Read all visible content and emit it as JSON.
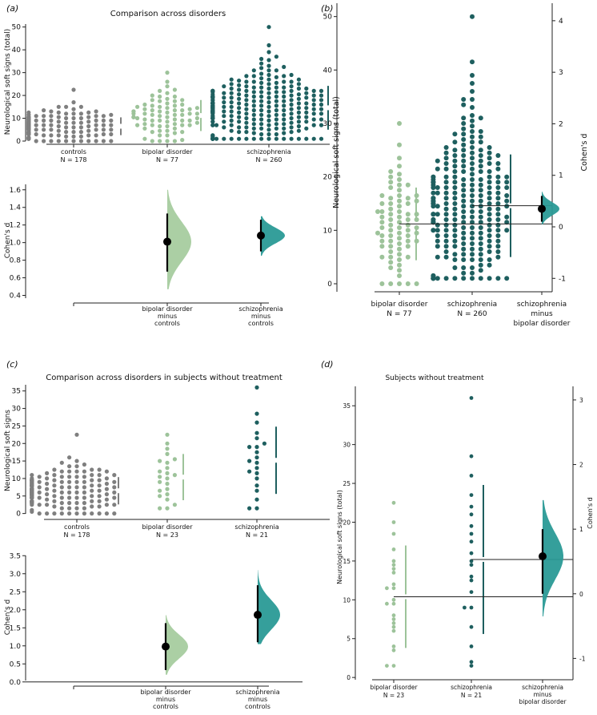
{
  "colors": {
    "controls": "#7f7f7f",
    "bipolar": "#9dc39a",
    "schizophrenia": "#1e5f5f",
    "effect_teal": "#2a9a96",
    "effect_green": "#a6cc9f",
    "black": "#000000"
  },
  "chart_data": [
    {
      "panel": "a",
      "panel_label": "(a)",
      "type": "scatter",
      "subtype": "swarm",
      "title": "Comparison across disorders",
      "ylabel": "Neurological soft signs (total)",
      "ylim": [
        0,
        52
      ],
      "yticks": [
        0,
        10,
        20,
        30,
        40,
        50
      ],
      "groups": [
        {
          "key": "controls",
          "label": "controls",
          "n_label": "N = 178",
          "n": 178,
          "mean": 6.5,
          "sd": 3.9,
          "min": 0,
          "max": 22.5,
          "color": "controls"
        },
        {
          "key": "bipolar",
          "label": "bipolar disorder",
          "n_label": "N = 77",
          "n": 77,
          "mean": 11.2,
          "sd": 6.8,
          "min": 0,
          "max": 30,
          "color": "bipolar"
        },
        {
          "key": "schizophrenia",
          "label": "schizophrenia",
          "n_label": "N = 260",
          "n": 260,
          "mean": 14.6,
          "sd": 9.6,
          "min": 1,
          "max": 50,
          "color": "schizophrenia"
        }
      ]
    },
    {
      "panel": "a2",
      "type": "violin",
      "subtype": "effect-size",
      "ylabel": "Cohen's d",
      "ylim": [
        0.35,
        1.68
      ],
      "yticks": [
        0.4,
        0.6,
        0.8,
        1.0,
        1.2,
        1.4,
        1.6
      ],
      "effects": [
        {
          "label": "bipolar disorder\nminus\ncontrols",
          "d": 1.01,
          "ci": [
            0.67,
            1.33
          ],
          "dist_range": [
            0.47,
            1.6
          ],
          "color": "effect_green"
        },
        {
          "label": "schizophrenia\nminus\ncontrols",
          "d": 1.08,
          "ci": [
            0.9,
            1.26
          ],
          "dist_range": [
            0.85,
            1.3
          ],
          "color": "effect_teal"
        }
      ]
    },
    {
      "panel": "b",
      "panel_label": "(b)",
      "type": "scatter",
      "subtype": "swarm-with-effect",
      "ylabel": "Neurological soft signs (total)",
      "ylabel_right": "Cohen's d",
      "ylim": [
        -1.5,
        52.5
      ],
      "yticks": [
        0,
        10,
        20,
        30,
        40,
        50
      ],
      "right_ylim": [
        -1.26,
        4.34
      ],
      "right_yticks": [
        -1,
        0,
        1,
        2,
        3,
        4
      ],
      "groups": [
        {
          "key": "bipolar",
          "label": "bipolar disorder",
          "n_label": "N = 77",
          "n": 77,
          "mean": 11.2,
          "sd": 6.8,
          "min": 0,
          "max": 30,
          "color": "bipolar"
        },
        {
          "key": "schizophrenia",
          "label": "schizophrenia",
          "n_label": "N = 260",
          "n": 260,
          "mean": 14.6,
          "sd": 9.6,
          "min": 1,
          "max": 50,
          "color": "schizophrenia"
        }
      ],
      "effect": {
        "label": "schizophrenia\nminus\nbipolar disorder",
        "d": 0.35,
        "ci": [
          0.1,
          0.6
        ],
        "dist_range": [
          0.05,
          0.68
        ],
        "color": "effect_teal"
      }
    },
    {
      "panel": "c",
      "panel_label": "(c)",
      "type": "scatter",
      "subtype": "swarm",
      "title": "Comparison across disorders in subjects without treatment",
      "ylabel": "Neurological soft signs",
      "ylim": [
        -1,
        37
      ],
      "yticks": [
        0,
        5,
        10,
        15,
        20,
        25,
        30,
        35
      ],
      "groups": [
        {
          "key": "controls",
          "label": "controls",
          "n_label": "N = 178",
          "n": 178,
          "mean": 6.5,
          "sd": 3.9,
          "min": 0,
          "max": 22.5,
          "color": "controls"
        },
        {
          "key": "bipolar",
          "label": "bipolar disorder",
          "n_label": "N = 23",
          "n": 23,
          "mean": 10.4,
          "sd": 6.6,
          "min": 1.5,
          "max": 22.5,
          "color": "bipolar"
        },
        {
          "key": "schizophrenia",
          "label": "schizophrenia",
          "n_label": "N = 21",
          "n": 21,
          "mean": 15.2,
          "sd": 9.6,
          "min": 1.5,
          "max": 36,
          "color": "schizophrenia"
        }
      ]
    },
    {
      "panel": "c2",
      "type": "violin",
      "subtype": "effect-size",
      "ylabel": "Cohen's d",
      "ylim": [
        -0.05,
        3.55
      ],
      "yticks": [
        0.0,
        0.5,
        1.0,
        1.5,
        2.0,
        2.5,
        3.0,
        3.5
      ],
      "effects": [
        {
          "label": "bipolar disorder\nminus\ncontrols",
          "d": 0.98,
          "ci": [
            0.33,
            1.63
          ],
          "dist_range": [
            0.2,
            1.85
          ],
          "color": "effect_green"
        },
        {
          "label": "schizophrenia\nminus\ncontrols",
          "d": 1.86,
          "ci": [
            1.1,
            2.68
          ],
          "dist_range": [
            1.05,
            3.1
          ],
          "color": "effect_teal"
        }
      ]
    },
    {
      "panel": "d",
      "panel_label": "(d)",
      "type": "scatter",
      "subtype": "swarm-with-effect",
      "title": "Subjects without treatment",
      "ylabel": "Neurological soft signs (total)",
      "ylabel_right": "Cohen's d",
      "ylim": [
        -0.5,
        37.5
      ],
      "yticks": [
        0,
        5,
        10,
        15,
        20,
        25,
        30,
        35
      ],
      "right_ylim": [
        -1.33,
        3.21
      ],
      "right_yticks": [
        -1,
        0,
        1,
        2,
        3
      ],
      "groups": [
        {
          "key": "bipolar",
          "label": "bipolar disorder",
          "n_label": "N = 23",
          "n": 23,
          "mean": 10.4,
          "sd": 6.6,
          "min": 1.5,
          "max": 22.5,
          "color": "bipolar"
        },
        {
          "key": "schizophrenia",
          "label": "schizophrenia",
          "n_label": "N = 21",
          "n": 21,
          "mean": 15.2,
          "sd": 9.6,
          "min": 1.5,
          "max": 36,
          "color": "schizophrenia"
        }
      ],
      "effect": {
        "label": "schizophrenia\nminus\nbipolar disorder",
        "d": 0.58,
        "ci": [
          0.0,
          1.0
        ],
        "dist_range": [
          -0.35,
          1.45
        ],
        "color": "effect_teal"
      }
    }
  ]
}
